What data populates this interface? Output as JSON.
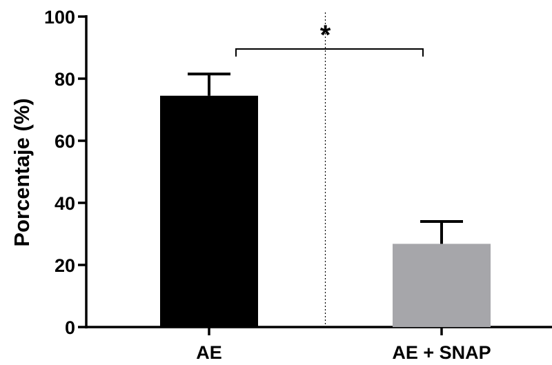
{
  "chart_data": {
    "type": "bar",
    "title": "",
    "xlabel": "",
    "ylabel": "Porcentaje (%)",
    "ylim": [
      0,
      100
    ],
    "yticks": [
      0,
      20,
      40,
      60,
      80,
      100
    ],
    "categories": [
      "AE",
      "AE + SNAP"
    ],
    "values": [
      74.5,
      26.8
    ],
    "error_upper": [
      81.5,
      34.0
    ],
    "bar_colors": [
      "#000000",
      "#a6a6aa"
    ],
    "significance": {
      "label": "*",
      "between": [
        0,
        1
      ]
    },
    "grid": false,
    "legend": "none"
  }
}
